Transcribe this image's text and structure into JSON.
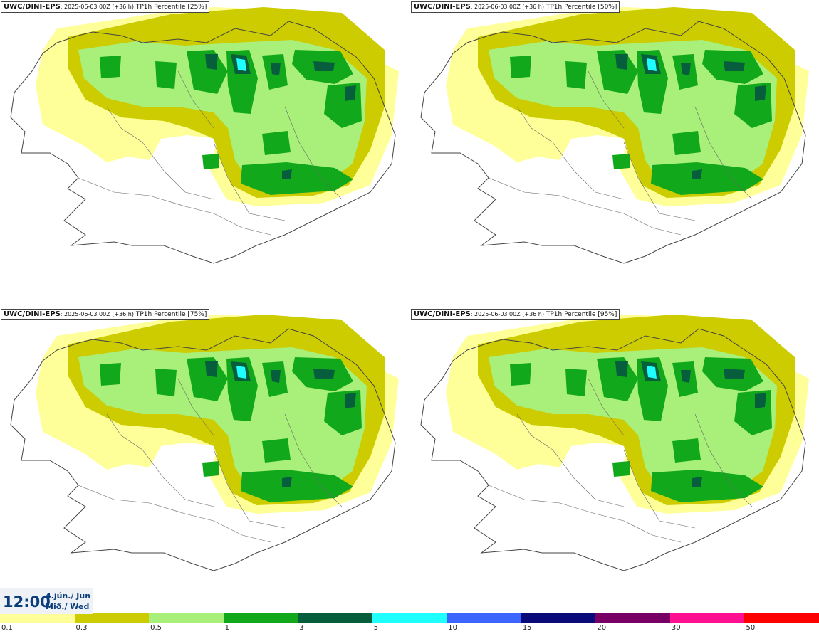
{
  "panels": [
    {
      "model": "UWC/DINI-EPS",
      "run": ": 2025-06-03 00Z (+36 h)",
      "field": "TP1h Percentile [25%]",
      "level": 0.25
    },
    {
      "model": "UWC/DINI-EPS",
      "run": ": 2025-06-03 00Z (+36 h)",
      "field": "TP1h Percentile [50%]",
      "level": 0.5
    },
    {
      "model": "UWC/DINI-EPS",
      "run": ": 2025-06-03 00Z (+36 h)",
      "field": "TP1h Percentile [75%]",
      "level": 0.75
    },
    {
      "model": "UWC/DINI-EPS",
      "run": ": 2025-06-03 00Z (+36 h)",
      "field": "TP1h Percentile [95%]",
      "level": 0.95
    }
  ],
  "valid_time": {
    "time": "12:00",
    "date_line1": "4.jún./ Jun",
    "date_line2": "Mið./ Wed"
  },
  "legend": {
    "colors": [
      "#ffff99",
      "#cccc00",
      "#a8f07a",
      "#12a81c",
      "#065e3c",
      "#20ffff",
      "#3c64ff",
      "#0a0a7a",
      "#780064",
      "#ff1090",
      "#ff0000"
    ],
    "ticks": [
      "0.1",
      "0.3",
      "0.5",
      "1",
      "3",
      "5",
      "10",
      "15",
      "20",
      "30",
      "50"
    ]
  },
  "map_colors": {
    "coast": "#444444",
    "road": "#666666"
  }
}
